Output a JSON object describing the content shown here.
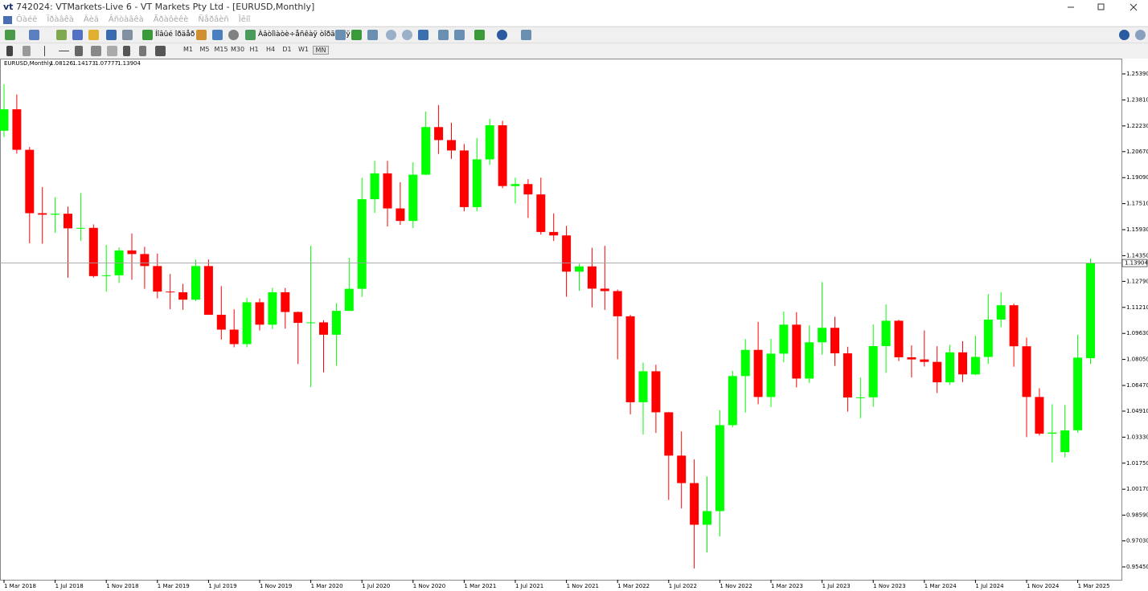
{
  "window": {
    "title": "742024: VTMarkets-Live 6 - VT Markets Pty Ltd - [EURUSD,Monthly]",
    "menu": [
      "Ôàéë",
      "Ïðàâêà",
      "Âèä",
      "Âñòàâêà",
      "Ãðàôèêè",
      "Ñåðâèñ",
      "Îêíî"
    ],
    "toolbar": {
      "new_order": "Íîâûé îðäåð",
      "auto_trading": "Àâòîìàòè÷åñêàÿ òîðãîâëÿ"
    },
    "timeframes": [
      "M1",
      "M5",
      "M15",
      "M30",
      "H1",
      "H4",
      "D1",
      "W1",
      "MN"
    ]
  },
  "chart_data": {
    "type": "candlestick",
    "symbol": "EURUSD,Monthly",
    "info_values": [
      1.08126,
      1.14173,
      1.07777,
      1.13904
    ],
    "last_price": 1.13904,
    "up_color": "#00ff00",
    "down_color": "#ff0000",
    "categories": [
      "1 Mar 2018",
      null,
      null,
      null,
      "1 Jul 2018",
      null,
      null,
      null,
      "1 Nov 2018",
      null,
      null,
      null,
      "1 Mar 2019",
      null,
      null,
      null,
      "1 Jul 2019",
      null,
      null,
      null,
      "1 Nov 2019",
      null,
      null,
      null,
      "1 Mar 2020",
      null,
      null,
      null,
      "1 Jul 2020",
      null,
      null,
      null,
      "1 Nov 2020",
      null,
      null,
      null,
      "1 Mar 2021",
      null,
      null,
      null,
      "1 Jul 2021",
      null,
      null,
      null,
      "1 Nov 2021",
      null,
      null,
      null,
      "1 Mar 2022",
      null,
      null,
      null,
      "1 Jul 2022",
      null,
      null,
      null,
      "1 Nov 2022",
      null,
      null,
      null,
      "1 Mar 2023",
      null,
      null,
      null,
      "1 Jul 2023",
      null,
      null,
      null,
      "1 Nov 2023",
      null,
      null,
      null,
      "1 Mar 2024",
      null,
      null,
      null,
      "1 Jul 2024",
      null,
      null,
      null,
      "1 Nov 2024",
      null,
      null,
      null,
      "1 Mar 2025",
      null
    ],
    "open": [
      1.2194,
      1.2324,
      1.2078,
      1.1693,
      1.1684,
      1.169,
      1.1601,
      1.1604,
      1.1311,
      1.1316,
      1.1467,
      1.1445,
      1.1372,
      1.1217,
      1.1213,
      1.1168,
      1.1372,
      1.1076,
      1.0986,
      1.0898,
      1.1152,
      1.1016,
      1.1213,
      1.1093,
      1.1027,
      1.103,
      1.0955,
      1.11,
      1.1234,
      1.1778,
      1.1935,
      1.1722,
      1.1646,
      1.1927,
      1.2216,
      1.2137,
      1.2074,
      1.173,
      1.202,
      1.2227,
      1.1858,
      1.187,
      1.1807,
      1.1579,
      1.1558,
      1.1338,
      1.137,
      1.1235,
      1.122,
      1.1067,
      1.0545,
      1.0733,
      1.0484,
      1.0221,
      1.0054,
      0.9801,
      0.9884,
      1.0406,
      1.0704,
      1.0863,
      1.0577,
      1.084,
      1.1016,
      1.0689,
      1.0909,
      1.0997,
      1.0842,
      1.0574,
      1.0575,
      1.0886,
      1.104,
      1.0818,
      1.0805,
      1.079,
      1.0666,
      1.0848,
      1.0714,
      1.082,
      1.1047,
      1.1134,
      1.0885,
      1.0577,
      1.0354,
      1.0242,
      1.0375,
      1.08126
    ],
    "high": [
      1.2476,
      1.2414,
      1.2095,
      1.1852,
      1.1791,
      1.1733,
      1.1815,
      1.1625,
      1.15,
      1.1486,
      1.157,
      1.1489,
      1.1448,
      1.1324,
      1.1264,
      1.1412,
      1.1412,
      1.125,
      1.1109,
      1.1179,
      1.1175,
      1.124,
      1.1239,
      1.1096,
      1.1495,
      1.1043,
      1.1147,
      1.1422,
      1.1908,
      1.2011,
      1.2011,
      1.1881,
      1.2003,
      1.231,
      1.235,
      1.2243,
      1.2113,
      1.215,
      1.2266,
      1.2254,
      1.1909,
      1.19,
      1.1909,
      1.1692,
      1.1616,
      1.1386,
      1.1483,
      1.1495,
      1.1229,
      1.1076,
      1.0786,
      1.0773,
      1.0486,
      1.0368,
      1.0198,
      1.0094,
      1.0497,
      1.0736,
      1.0929,
      1.1033,
      1.093,
      1.1095,
      1.1092,
      1.1012,
      1.1275,
      1.1064,
      1.0882,
      1.0695,
      1.1017,
      1.1139,
      1.1046,
      1.089,
      1.0981,
      1.0885,
      1.0895,
      1.0916,
      1.0948,
      1.1202,
      1.1214,
      1.1144,
      1.0937,
      1.063,
      1.0533,
      1.0528,
      1.0955,
      1.14173
    ],
    "low": [
      1.2155,
      1.2055,
      1.151,
      1.1508,
      1.1574,
      1.1301,
      1.1526,
      1.1302,
      1.1216,
      1.1269,
      1.1289,
      1.1234,
      1.1176,
      1.111,
      1.1106,
      1.116,
      1.1101,
      1.0926,
      1.0879,
      1.0879,
      1.0981,
      1.0989,
      1.0992,
      1.0777,
      1.0636,
      1.0727,
      1.0767,
      1.11,
      1.1185,
      1.1695,
      1.1612,
      1.1622,
      1.1603,
      1.1925,
      1.2053,
      1.2023,
      1.1704,
      1.1704,
      1.1986,
      1.1845,
      1.1752,
      1.1664,
      1.1563,
      1.1524,
      1.1186,
      1.1222,
      1.1121,
      1.1106,
      1.0806,
      1.0471,
      1.0349,
      1.0359,
      0.9952,
      0.99,
      0.9536,
      0.9632,
      0.973,
      1.0393,
      1.0482,
      1.0533,
      1.0516,
      1.0788,
      1.0635,
      1.0662,
      1.0834,
      1.0766,
      1.0488,
      1.0448,
      1.0517,
      1.0723,
      1.0795,
      1.0695,
      1.0762,
      1.0601,
      1.065,
      1.0668,
      1.0709,
      1.0778,
      1.1001,
      1.0761,
      1.0333,
      1.0343,
      1.0178,
      1.021,
      1.036,
      1.07777
    ],
    "close": [
      1.2324,
      1.2078,
      1.1693,
      1.1684,
      1.169,
      1.1601,
      1.1604,
      1.1311,
      1.1316,
      1.1467,
      1.1445,
      1.1372,
      1.1217,
      1.1213,
      1.1168,
      1.1372,
      1.1076,
      1.0986,
      1.0898,
      1.1152,
      1.1016,
      1.1213,
      1.1093,
      1.1027,
      1.103,
      1.0955,
      1.11,
      1.1234,
      1.1778,
      1.1935,
      1.1722,
      1.1646,
      1.1927,
      1.2216,
      1.2137,
      1.2074,
      1.173,
      1.202,
      1.2227,
      1.1858,
      1.187,
      1.1807,
      1.1579,
      1.1558,
      1.1338,
      1.137,
      1.1235,
      1.122,
      1.1067,
      1.0545,
      1.0733,
      1.0484,
      1.0221,
      1.0054,
      0.9801,
      0.9884,
      1.0406,
      1.0704,
      1.0863,
      1.0577,
      1.084,
      1.1016,
      1.0689,
      1.0909,
      1.0997,
      1.0842,
      1.0574,
      1.0575,
      1.0886,
      1.104,
      1.0818,
      1.0805,
      1.079,
      1.0666,
      1.0848,
      1.0714,
      1.082,
      1.1047,
      1.1134,
      1.0885,
      1.0577,
      1.0354,
      1.0361,
      1.0374,
      1.0816,
      1.13904
    ],
    "ylim": [
      0.9467,
      1.2622
    ],
    "yticks": [
      {
        "value": 1.2539,
        "label": "1.25390"
      },
      {
        "value": 1.2381,
        "label": "1.23810"
      },
      {
        "value": 1.2223,
        "label": "1.22230"
      },
      {
        "value": 1.2067,
        "label": "1.20670"
      },
      {
        "value": 1.1909,
        "label": "1.19090"
      },
      {
        "value": 1.1751,
        "label": "1.17510"
      },
      {
        "value": 1.1593,
        "label": "1.15930"
      },
      {
        "value": 1.1435,
        "label": "1.14350"
      },
      {
        "value": 1.1279,
        "label": "1.12790"
      },
      {
        "value": 1.1121,
        "label": "1.11210"
      },
      {
        "value": 1.0963,
        "label": "1.09630"
      },
      {
        "value": 1.0805,
        "label": "1.08050"
      },
      {
        "value": 1.0647,
        "label": "1.06470"
      },
      {
        "value": 1.0491,
        "label": "1.04910"
      },
      {
        "value": 1.0333,
        "label": "1.03330"
      },
      {
        "value": 1.0175,
        "label": "1.01750"
      },
      {
        "value": 1.0017,
        "label": "1.00170"
      },
      {
        "value": 0.9859,
        "label": "0.98590"
      },
      {
        "value": 0.9703,
        "label": "0.97030"
      },
      {
        "value": 0.9545,
        "label": "0.95450"
      }
    ],
    "grid": false
  }
}
